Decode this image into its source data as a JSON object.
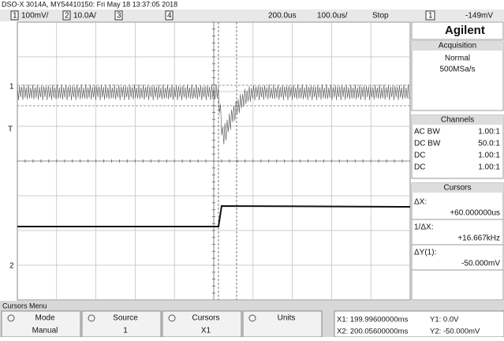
{
  "header": {
    "title": "DSO-X 3014A, MY54410150: Fri May 18 13:37:05 2018"
  },
  "status": {
    "ch1": "1",
    "ch1_scale": "100mV/",
    "ch2": "2",
    "ch2_scale": "10.0A/",
    "ch3": "3",
    "ch4": "4",
    "delay": "200.0us",
    "timebase": "100.0us/",
    "run_state": "Stop",
    "trig_source": "1",
    "trig_level": "-149mV"
  },
  "markers": {
    "ch1": "1",
    "trigger": "T",
    "ch2": "2"
  },
  "panel": {
    "brand": "Agilent",
    "acquisition": {
      "title": "Acquisition",
      "mode": "Normal",
      "rate": "500MSa/s"
    },
    "channels": {
      "title": "Channels",
      "rows": [
        [
          "AC BW",
          "1.00:1"
        ],
        [
          "DC BW",
          "50.0:1"
        ],
        [
          "DC",
          "1.00:1"
        ],
        [
          "DC",
          "1.00:1"
        ]
      ]
    },
    "cursors": {
      "title": "Cursors",
      "items": [
        [
          "ΔX:",
          "+60.000000us"
        ],
        [
          "1/ΔX:",
          "+16.667kHz"
        ],
        [
          "ΔY(1):",
          "-50.000mV"
        ]
      ]
    }
  },
  "menu": {
    "title": "Cursors Menu",
    "softkeys": [
      [
        "Mode",
        "Manual"
      ],
      [
        "Source",
        "1"
      ],
      [
        "Cursors",
        "X1"
      ],
      [
        "Units",
        ""
      ]
    ],
    "readout": [
      "X1: 199.99600000ms",
      "X2: 200.05600000ms",
      "Y1: 0.0V",
      "Y2: -50.000mV"
    ]
  }
}
